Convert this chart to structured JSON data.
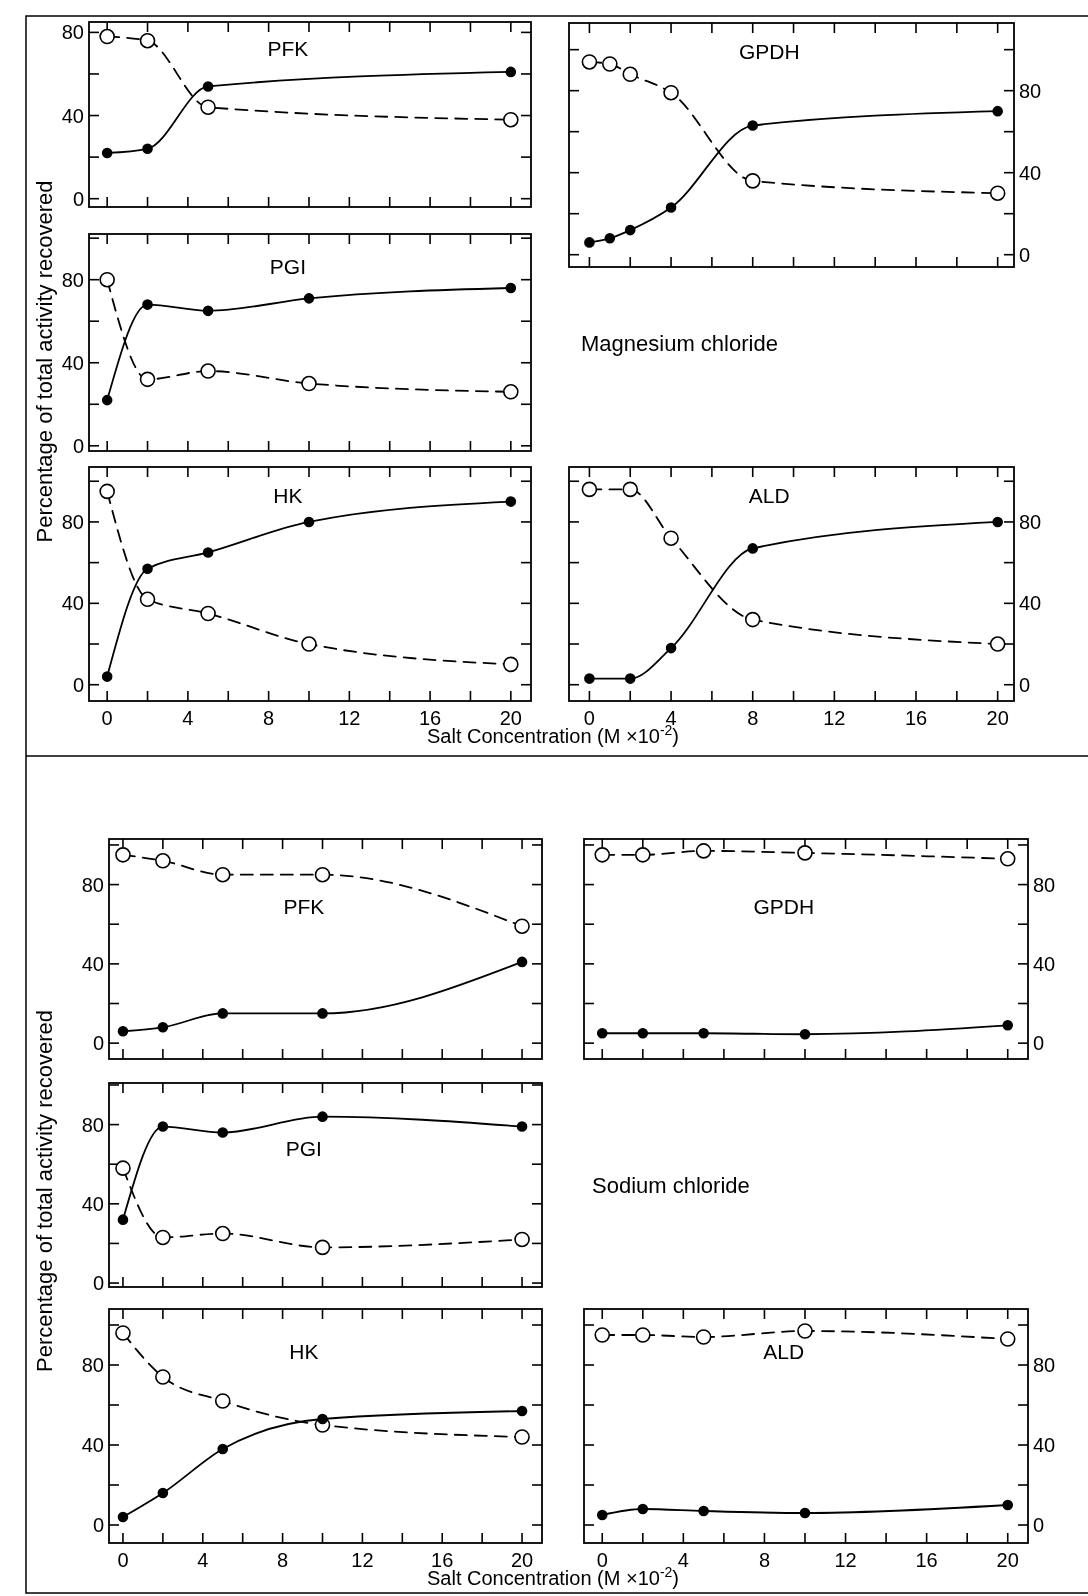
{
  "chart_data": [
    {
      "type": "line",
      "title": "PFK",
      "xlim": [
        -0.9,
        21
      ],
      "ylim": [
        -4,
        85
      ],
      "xticks": [
        0,
        {
          "value": 2,
          "label": null
        },
        4,
        {
          "value": 6,
          "label": null
        },
        8,
        {
          "value": 10,
          "label": null
        },
        12,
        {
          "value": 14,
          "label": null
        },
        16,
        {
          "value": 18,
          "label": null
        },
        20
      ],
      "yticks": [
        0,
        {
          "value": 20,
          "label": null
        },
        40,
        {
          "value": 60,
          "label": null
        },
        80
      ],
      "tick_labels": "y",
      "marker": "circle",
      "series": [
        {
          "color": "#000000",
          "line_style": "solid",
          "x": [
            0,
            2,
            5,
            20
          ],
          "values": [
            22,
            24,
            54,
            61
          ]
        },
        {
          "color": "#000000",
          "line_style": "dashed",
          "x": [
            0,
            2,
            5,
            20
          ],
          "values": [
            78,
            76,
            44,
            38
          ]
        }
      ]
    },
    {
      "type": "line",
      "title": "GPDH",
      "xlim": [
        -1,
        20.8
      ],
      "ylim": [
        -6,
        113
      ],
      "xticks": [
        0,
        {
          "value": 2,
          "label": null
        },
        4,
        {
          "value": 6,
          "label": null
        },
        8,
        {
          "value": 10,
          "label": null
        },
        12,
        {
          "value": 14,
          "label": null
        },
        16,
        {
          "value": 18,
          "label": null
        },
        20
      ],
      "yticks": [
        0,
        {
          "value": 20,
          "label": null
        },
        40,
        {
          "value": 60,
          "label": null
        },
        80,
        {
          "value": 100,
          "label": null
        }
      ],
      "tick_labels": "y",
      "marker": "circle",
      "series": [
        {
          "color": "#000000",
          "line_style": "solid",
          "x": [
            0,
            1,
            2,
            4,
            8,
            20
          ],
          "values": [
            6,
            8,
            12,
            23,
            63,
            70
          ]
        },
        {
          "color": "#000000",
          "line_style": "dashed",
          "x": [
            0,
            1,
            2,
            4,
            8,
            20
          ],
          "values": [
            94,
            93,
            88,
            79,
            36,
            30
          ]
        }
      ]
    },
    {
      "type": "line",
      "title": "PGI",
      "ylabel": "Percentage of total activity recovered",
      "annotations": [
        "Magnesium chloride"
      ],
      "xlim": [
        -0.9,
        21
      ],
      "ylim": [
        -2.5,
        102
      ],
      "xticks": [
        0,
        {
          "value": 2,
          "label": null
        },
        4,
        {
          "value": 6,
          "label": null
        },
        8,
        {
          "value": 10,
          "label": null
        },
        12,
        {
          "value": 14,
          "label": null
        },
        16,
        {
          "value": 18,
          "label": null
        },
        20
      ],
      "yticks": [
        0,
        {
          "value": 20,
          "label": null
        },
        40,
        {
          "value": 60,
          "label": null
        },
        80,
        {
          "value": 100,
          "label": null
        }
      ],
      "tick_labels": "y",
      "marker": "circle",
      "series": [
        {
          "color": "#000000",
          "line_style": "solid",
          "x": [
            0,
            2,
            5,
            10,
            20
          ],
          "values": [
            22,
            68,
            65,
            71,
            76
          ]
        },
        {
          "color": "#000000",
          "line_style": "dashed",
          "x": [
            0,
            2,
            5,
            10,
            20
          ],
          "values": [
            80,
            32,
            36,
            30,
            26
          ]
        }
      ]
    },
    {
      "type": "line",
      "title": "HK",
      "xlabel": "Salt Concentration (M ×10$^{-2}$)",
      "xlim": [
        -0.9,
        21
      ],
      "ylim": [
        -8,
        107
      ],
      "xticks": [
        0,
        {
          "value": 2,
          "label": null
        },
        4,
        {
          "value": 6,
          "label": null
        },
        8,
        {
          "value": 10,
          "label": null
        },
        12,
        {
          "value": 14,
          "label": null
        },
        16,
        {
          "value": 18,
          "label": null
        },
        20
      ],
      "yticks": [
        0,
        {
          "value": 20,
          "label": null
        },
        40,
        {
          "value": 60,
          "label": null
        },
        80,
        {
          "value": 100,
          "label": null
        }
      ],
      "marker": "circle",
      "series": [
        {
          "color": "#000000",
          "line_style": "solid",
          "x": [
            0,
            2,
            5,
            10,
            20
          ],
          "values": [
            4,
            57,
            65,
            80,
            90
          ]
        },
        {
          "color": "#000000",
          "line_style": "dashed",
          "x": [
            0,
            2,
            5,
            10,
            20
          ],
          "values": [
            95,
            42,
            35,
            20,
            10
          ]
        }
      ]
    },
    {
      "type": "line",
      "title": "ALD",
      "xlim": [
        -1,
        20.8
      ],
      "y2lim": [
        -8,
        107
      ],
      "xticks": [
        0,
        {
          "value": 2,
          "label": null
        },
        4,
        {
          "value": 6,
          "label": null
        },
        8,
        {
          "value": 10,
          "label": null
        },
        12,
        {
          "value": 14,
          "label": null
        },
        16,
        {
          "value": 18,
          "label": null
        },
        20
      ],
      "y2ticks": [
        0,
        {
          "value": 20,
          "label": null
        },
        40,
        {
          "value": 60,
          "label": null
        },
        80,
        {
          "value": 100,
          "label": null
        }
      ],
      "marker": "circle",
      "series": [
        {
          "color": "#000000",
          "line_style": "solid",
          "axis": "y2",
          "x": [
            0,
            2,
            4,
            8,
            20
          ],
          "values": [
            3,
            3,
            18,
            67,
            80
          ]
        },
        {
          "color": "#000000",
          "line_style": "dashed",
          "axis": "y2",
          "x": [
            0,
            2,
            4,
            8,
            20
          ],
          "values": [
            96,
            96,
            72,
            32,
            20
          ]
        }
      ]
    },
    {
      "type": "line",
      "title": "PFK",
      "xlim": [
        -0.7,
        21
      ],
      "ylim": [
        -8,
        103
      ],
      "xticks": [
        0,
        {
          "value": 2,
          "label": null
        },
        4,
        {
          "value": 6,
          "label": null
        },
        8,
        {
          "value": 10,
          "label": null
        },
        12,
        {
          "value": 14,
          "label": null
        },
        16,
        {
          "value": 18,
          "label": null
        },
        20
      ],
      "yticks": [
        0,
        {
          "value": 20,
          "label": null
        },
        40,
        {
          "value": 60,
          "label": null
        },
        80,
        {
          "value": 100,
          "label": null
        }
      ],
      "tick_labels": "y",
      "marker": "circle",
      "series": [
        {
          "color": "#000000",
          "line_style": "solid",
          "x": [
            0,
            2,
            5,
            10,
            20
          ],
          "values": [
            6,
            8,
            15,
            15,
            41
          ]
        },
        {
          "color": "#000000",
          "line_style": "dashed",
          "x": [
            0,
            2,
            5,
            10,
            20
          ],
          "values": [
            95,
            92,
            85,
            85,
            59
          ]
        }
      ]
    },
    {
      "type": "line",
      "title": "GPDH",
      "xlim": [
        -0.9,
        21
      ],
      "ylim": [
        -8,
        103
      ],
      "xticks": [
        0,
        {
          "value": 2,
          "label": null
        },
        4,
        {
          "value": 6,
          "label": null
        },
        8,
        {
          "value": 10,
          "label": null
        },
        12,
        {
          "value": 14,
          "label": null
        },
        16,
        {
          "value": 18,
          "label": null
        },
        20
      ],
      "yticks": [
        0,
        {
          "value": 20,
          "label": null
        },
        40,
        {
          "value": 60,
          "label": null
        },
        80,
        {
          "value": 100,
          "label": null
        }
      ],
      "tick_labels": "y",
      "marker": "circle",
      "series": [
        {
          "color": "#000000",
          "line_style": "solid",
          "x": [
            0,
            2,
            5,
            10,
            20
          ],
          "values": [
            5,
            5,
            5,
            4.5,
            9
          ]
        },
        {
          "color": "#000000",
          "line_style": "dashed",
          "x": [
            0,
            2,
            5,
            10,
            20
          ],
          "values": [
            95,
            95,
            97,
            96,
            93
          ]
        }
      ]
    },
    {
      "type": "line",
      "title": "PGI",
      "ylabel": "Percentage of total activity recovered",
      "annotations": [
        "Sodium chloride"
      ],
      "xlim": [
        -0.7,
        21
      ],
      "ylim": [
        -2,
        101
      ],
      "xticks": [
        0,
        {
          "value": 2,
          "label": null
        },
        4,
        {
          "value": 6,
          "label": null
        },
        8,
        {
          "value": 10,
          "label": null
        },
        12,
        {
          "value": 14,
          "label": null
        },
        16,
        {
          "value": 18,
          "label": null
        },
        20
      ],
      "yticks": [
        0,
        {
          "value": 20,
          "label": null
        },
        40,
        {
          "value": 60,
          "label": null
        },
        80,
        {
          "value": 100,
          "label": null
        }
      ],
      "tick_labels": "y",
      "marker": "circle",
      "series": [
        {
          "color": "#000000",
          "line_style": "solid",
          "x": [
            0,
            2,
            5,
            10,
            20
          ],
          "values": [
            32,
            79,
            76,
            84,
            79
          ]
        },
        {
          "color": "#000000",
          "line_style": "dashed",
          "x": [
            0,
            2,
            5,
            10,
            20
          ],
          "values": [
            58,
            23,
            25,
            18,
            22
          ]
        }
      ]
    },
    {
      "type": "line",
      "title": "HK",
      "xlabel": "Salt Concentration (M ×10$^{-2}$)",
      "xlim": [
        -0.7,
        21
      ],
      "ylim": [
        -9,
        108
      ],
      "xticks": [
        0,
        {
          "value": 2,
          "label": null
        },
        4,
        {
          "value": 6,
          "label": null
        },
        8,
        {
          "value": 10,
          "label": null
        },
        12,
        {
          "value": 14,
          "label": null
        },
        16,
        {
          "value": 18,
          "label": null
        },
        20
      ],
      "yticks": [
        0,
        {
          "value": 20,
          "label": null
        },
        40,
        {
          "value": 60,
          "label": null
        },
        80,
        {
          "value": 100,
          "label": null
        }
      ],
      "marker": "circle",
      "series": [
        {
          "color": "#000000",
          "line_style": "solid",
          "x": [
            0,
            2,
            5,
            10,
            20
          ],
          "values": [
            4,
            16,
            38,
            53,
            57
          ]
        },
        {
          "color": "#000000",
          "line_style": "dashed",
          "x": [
            0,
            2,
            5,
            10,
            20
          ],
          "values": [
            96,
            74,
            62,
            50,
            44
          ]
        }
      ]
    },
    {
      "type": "line",
      "title": "ALD",
      "xlim": [
        -0.9,
        21
      ],
      "y2lim": [
        -9,
        108
      ],
      "xticks": [
        0,
        {
          "value": 2,
          "label": null
        },
        4,
        {
          "value": 6,
          "label": null
        },
        8,
        {
          "value": 10,
          "label": null
        },
        12,
        {
          "value": 14,
          "label": null
        },
        16,
        {
          "value": 18,
          "label": null
        },
        20
      ],
      "y2ticks": [
        0,
        {
          "value": 20,
          "label": null
        },
        40,
        {
          "value": 60,
          "label": null
        },
        80,
        {
          "value": 100,
          "label": null
        }
      ],
      "marker": "circle",
      "series": [
        {
          "color": "#000000",
          "line_style": "solid",
          "axis": "y2",
          "x": [
            0,
            2,
            5,
            10,
            20
          ],
          "values": [
            5,
            8,
            7,
            6,
            10
          ]
        },
        {
          "color": "#000000",
          "line_style": "dashed",
          "axis": "y2",
          "x": [
            0,
            2,
            5,
            10,
            20
          ],
          "values": [
            95,
            95,
            94,
            97,
            93
          ]
        }
      ]
    }
  ]
}
